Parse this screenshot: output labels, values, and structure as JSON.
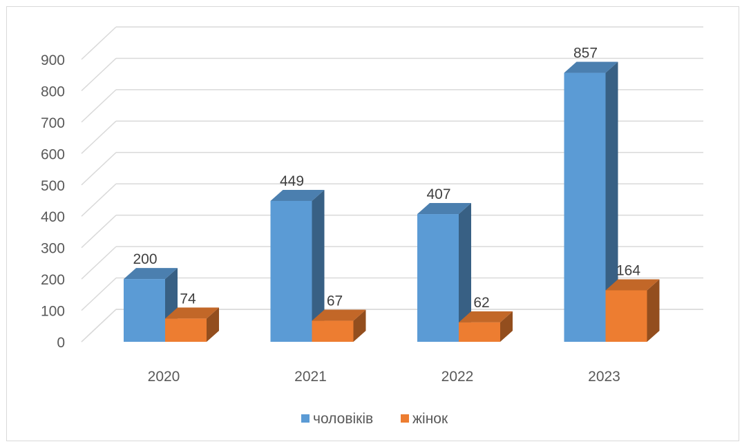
{
  "chart_data": {
    "type": "bar",
    "categories": [
      "2020",
      "2021",
      "2022",
      "2023"
    ],
    "series": [
      {
        "name": "чоловіків",
        "values": [
          200,
          449,
          407,
          857
        ],
        "color": "#5b9bd5"
      },
      {
        "name": "жінок",
        "values": [
          74,
          67,
          62,
          164
        ],
        "color": "#ed7d31"
      }
    ],
    "y_ticks": [
      "0",
      "100",
      "200",
      "300",
      "400",
      "500",
      "600",
      "700",
      "800",
      "900"
    ],
    "ylim": [
      0,
      900
    ],
    "grid": true,
    "legend": "bottom",
    "style": "3d-clustered-column"
  }
}
